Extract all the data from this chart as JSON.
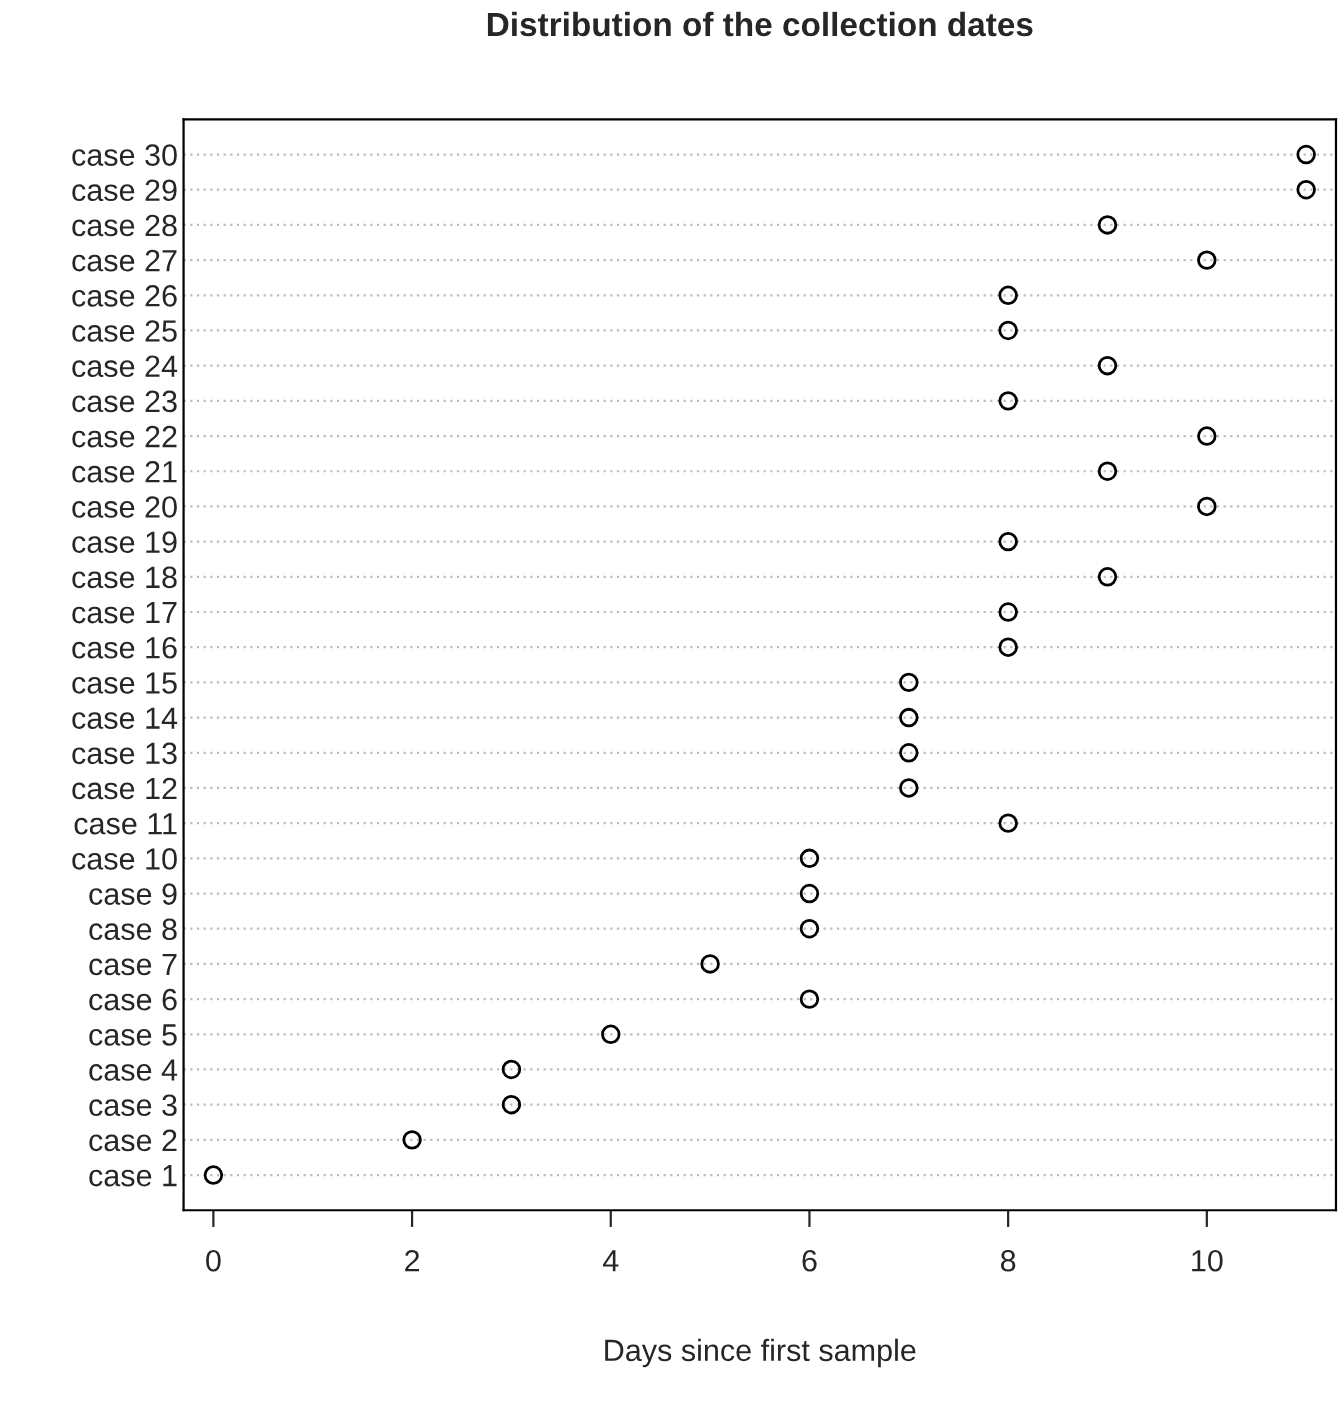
{
  "chart_data": {
    "type": "scatter",
    "title": "Distribution of the collection dates",
    "xlabel": "Days since first sample",
    "orientation": "horizontal",
    "categories": [
      "case 30",
      "case 29",
      "case 28",
      "case 27",
      "case 26",
      "case 25",
      "case 24",
      "case 23",
      "case 22",
      "case 21",
      "case 20",
      "case 19",
      "case 18",
      "case 17",
      "case 16",
      "case 15",
      "case 14",
      "case 13",
      "case 12",
      "case 11",
      "case 10",
      "case 9",
      "case 8",
      "case 7",
      "case 6",
      "case 5",
      "case 4",
      "case 3",
      "case 2",
      "case 1"
    ],
    "series": [
      {
        "color": "#000000",
        "values": [
          11,
          11,
          9,
          10,
          8,
          8,
          9,
          8,
          10,
          9,
          10,
          8,
          9,
          8,
          8,
          7,
          7,
          7,
          7,
          8,
          6,
          6,
          6,
          5,
          6,
          4,
          3,
          3,
          2,
          0
        ]
      }
    ],
    "xlim": [
      -0.3,
      11.3
    ],
    "xticks": [
      0,
      2,
      4,
      6,
      8,
      10
    ],
    "grid": "y",
    "marker": "circle"
  }
}
